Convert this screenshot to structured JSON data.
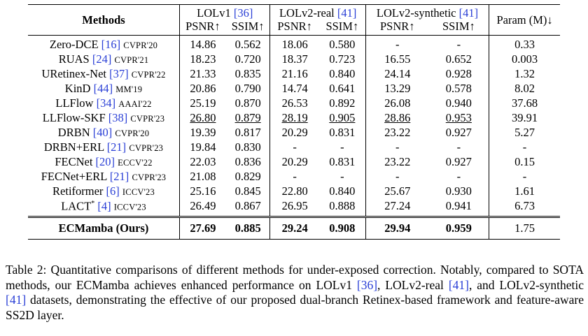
{
  "table": {
    "header": {
      "methods": "Methods",
      "groups": [
        {
          "name": "LOLv1",
          "ref": "[36]"
        },
        {
          "name": "LOLv2-real",
          "ref": "[41]"
        },
        {
          "name": "LOLv2-synthetic",
          "ref": "[41]"
        }
      ],
      "psnr": "PSNR↑",
      "ssim": "SSIM↑",
      "param": "Param (M)↓"
    },
    "rows": [
      {
        "name": "Zero-DCE",
        "ref": "[16]",
        "venue": "CVPR'20",
        "v": [
          "14.86",
          "0.562",
          "18.06",
          "0.580",
          "-",
          "-",
          "0.33"
        ]
      },
      {
        "name": "RUAS",
        "ref": "[24]",
        "venue": "CVPR'21",
        "v": [
          "18.23",
          "0.720",
          "18.37",
          "0.723",
          "16.55",
          "0.652",
          "0.003"
        ]
      },
      {
        "name": "URetinex-Net",
        "ref": "[37]",
        "venue": "CVPR'22",
        "v": [
          "21.33",
          "0.835",
          "21.16",
          "0.840",
          "24.14",
          "0.928",
          "1.32"
        ]
      },
      {
        "name": "KinD",
        "ref": "[44]",
        "venue": "MM'19",
        "v": [
          "20.86",
          "0.790",
          "14.74",
          "0.641",
          "13.29",
          "0.578",
          "8.02"
        ]
      },
      {
        "name": "LLFlow",
        "ref": "[34]",
        "venue": "AAAI'22",
        "v": [
          "25.19",
          "0.870",
          "26.53",
          "0.892",
          "26.08",
          "0.940",
          "37.68"
        ]
      },
      {
        "name": "LLFlow-SKF",
        "ref": "[38]",
        "venue": "CVPR'23",
        "v": [
          "26.80",
          "0.879",
          "28.19",
          "0.905",
          "28.86",
          "0.953",
          "39.91"
        ]
      },
      {
        "name": "DRBN",
        "ref": "[40]",
        "venue": "CVPR'20",
        "v": [
          "19.39",
          "0.817",
          "20.29",
          "0.831",
          "23.22",
          "0.927",
          "5.27"
        ]
      },
      {
        "name": "DRBN+ERL",
        "ref": "[21]",
        "venue": "CVPR'23",
        "v": [
          "19.84",
          "0.830",
          "-",
          "-",
          "-",
          "-",
          "-"
        ]
      },
      {
        "name": "FECNet",
        "ref": "[20]",
        "venue": "ECCV'22",
        "v": [
          "22.03",
          "0.836",
          "20.29",
          "0.831",
          "23.22",
          "0.927",
          "0.15"
        ]
      },
      {
        "name": "FECNet+ERL",
        "ref": "[21]",
        "venue": "CVPR'23",
        "v": [
          "21.08",
          "0.829",
          "-",
          "-",
          "-",
          "-",
          "-"
        ]
      },
      {
        "name": "Retiformer",
        "ref": "[6]",
        "venue": "ICCV'23",
        "v": [
          "25.16",
          "0.845",
          "22.80",
          "0.840",
          "25.67",
          "0.930",
          "1.61"
        ]
      },
      {
        "name": "LACT",
        "sup": "*",
        "ref": "[4]",
        "venue": "ICCV'23",
        "v": [
          "26.49",
          "0.867",
          "26.95",
          "0.888",
          "27.24",
          "0.941",
          "6.73"
        ]
      }
    ],
    "ours": {
      "name": "ECMamba (Ours)",
      "v": [
        "27.69",
        "0.885",
        "29.24",
        "0.908",
        "29.94",
        "0.959",
        "1.75"
      ]
    }
  },
  "caption": {
    "lead": "Table 2: Quantitative comparisons of different methods for under-exposed correction. Notably, compared to SOTA methods, our ECMamba achieves enhanced performance on LOLv1 ",
    "ref1": "[36]",
    "mid1": ", LOLv2-real ",
    "ref2": "[41]",
    "mid2": ", and LOLv2-synthetic ",
    "ref3": "[41]",
    "tail": " datasets, demonstrating the effective of our proposed dual-branch Retinex-based framework and feature-aware SS2D layer."
  }
}
